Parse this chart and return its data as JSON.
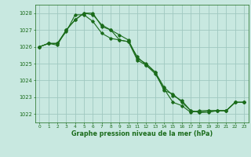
{
  "title": "Graphe pression niveau de la mer (hPa)",
  "background_color": "#c8e8e0",
  "grid_color": "#a0c8c0",
  "line_color": "#1a6b1a",
  "xlim": [
    -0.5,
    23.5
  ],
  "ylim": [
    1021.5,
    1028.5
  ],
  "yticks": [
    1022,
    1023,
    1024,
    1025,
    1026,
    1027,
    1028
  ],
  "xticks": [
    0,
    1,
    2,
    3,
    4,
    5,
    6,
    7,
    8,
    9,
    10,
    11,
    12,
    13,
    14,
    15,
    16,
    17,
    18,
    19,
    20,
    21,
    22,
    23
  ],
  "series": [
    [
      1026.0,
      1026.2,
      1026.2,
      1026.9,
      1027.9,
      1027.9,
      1027.5,
      1026.8,
      1026.5,
      1026.4,
      1026.3,
      1025.4,
      1024.9,
      1024.5,
      1023.6,
      1023.1,
      1022.8,
      1022.2,
      1022.1,
      1022.2,
      1022.2,
      1022.2,
      1022.7,
      1022.7
    ],
    [
      1026.0,
      1026.2,
      1026.1,
      1027.0,
      1027.6,
      1028.0,
      1028.0,
      1027.2,
      1027.0,
      1026.7,
      1026.4,
      1025.3,
      1025.0,
      1024.5,
      1023.4,
      1023.2,
      1022.7,
      1022.2,
      1022.1,
      1022.1,
      1022.2,
      1022.2,
      1022.7,
      1022.7
    ],
    [
      1026.0,
      1026.2,
      1026.2,
      1027.0,
      1027.6,
      1028.0,
      1027.9,
      1027.3,
      1027.0,
      1026.4,
      1026.3,
      1025.2,
      1024.9,
      1024.4,
      1023.5,
      1022.7,
      1022.5,
      1022.1,
      1022.2,
      1022.2,
      1022.2,
      1022.2,
      1022.7,
      1022.7
    ]
  ],
  "figsize": [
    3.2,
    2.0
  ],
  "dpi": 100
}
